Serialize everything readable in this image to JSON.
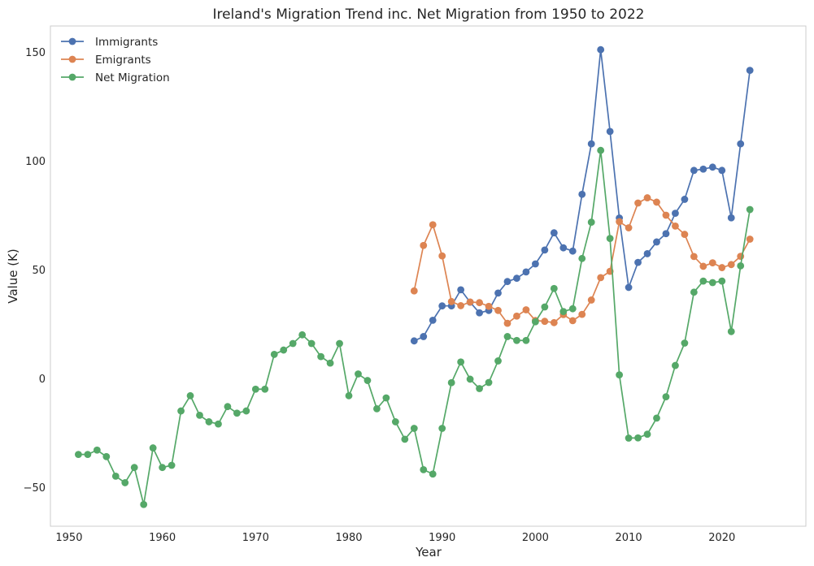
{
  "chart_data": {
    "type": "line",
    "title": "Ireland's Migration Trend inc. Net Migration from 1950 to 2022",
    "xlabel": "Year",
    "ylabel": "Value (K)",
    "xlim": [
      1948,
      2029
    ],
    "ylim": [
      -68,
      162
    ],
    "xticks": [
      1950,
      1960,
      1970,
      1980,
      1990,
      2000,
      2010,
      2020
    ],
    "yticks": [
      -50,
      0,
      50,
      100,
      150
    ],
    "grid": false,
    "legend_position": "top-left",
    "series": [
      {
        "name": "Immigrants",
        "color": "#4c72b0",
        "x": [
          1987,
          1988,
          1989,
          1990,
          1991,
          1992,
          1993,
          1994,
          1995,
          1996,
          1997,
          1998,
          1999,
          2000,
          2001,
          2002,
          2003,
          2004,
          2005,
          2006,
          2007,
          2008,
          2009,
          2010,
          2011,
          2012,
          2013,
          2014,
          2015,
          2016,
          2017,
          2018,
          2019,
          2020,
          2021,
          2022,
          2023
        ],
        "y": [
          17.2,
          19.2,
          26.7,
          33.3,
          33.3,
          40.7,
          35.0,
          30.1,
          31.2,
          39.2,
          44.5,
          46.0,
          48.9,
          52.6,
          59.0,
          66.9,
          60.0,
          58.5,
          84.6,
          107.8,
          151.1,
          113.5,
          73.7,
          41.8,
          53.3,
          57.3,
          62.7,
          66.5,
          75.9,
          82.3,
          95.6,
          96.2,
          97.1,
          95.6,
          73.8,
          107.8,
          141.6
        ]
      },
      {
        "name": "Emigrants",
        "color": "#dd8452",
        "x": [
          1987,
          1988,
          1989,
          1990,
          1991,
          1992,
          1993,
          1994,
          1995,
          1996,
          1997,
          1998,
          1999,
          2000,
          2001,
          2002,
          2003,
          2004,
          2005,
          2006,
          2007,
          2008,
          2009,
          2010,
          2011,
          2012,
          2013,
          2014,
          2015,
          2016,
          2017,
          2018,
          2019,
          2020,
          2021,
          2022,
          2023
        ],
        "y": [
          40.2,
          61.1,
          70.6,
          56.3,
          35.3,
          33.4,
          35.1,
          34.8,
          33.1,
          31.2,
          25.3,
          28.6,
          31.5,
          26.6,
          26.2,
          25.6,
          29.3,
          26.5,
          29.4,
          36.0,
          46.3,
          49.2,
          72.0,
          69.2,
          80.6,
          83.0,
          81.0,
          75.0,
          70.0,
          66.2,
          56.0,
          51.5,
          53.1,
          50.9,
          52.3,
          56.1,
          64.0
        ]
      },
      {
        "name": "Net Migration",
        "color": "#55a868",
        "x": [
          1951,
          1952,
          1953,
          1954,
          1955,
          1956,
          1957,
          1958,
          1959,
          1960,
          1961,
          1962,
          1963,
          1964,
          1965,
          1966,
          1967,
          1968,
          1969,
          1970,
          1971,
          1972,
          1973,
          1974,
          1975,
          1976,
          1977,
          1978,
          1979,
          1980,
          1981,
          1982,
          1983,
          1984,
          1985,
          1986,
          1987,
          1988,
          1989,
          1990,
          1991,
          1992,
          1993,
          1994,
          1995,
          1996,
          1997,
          1998,
          1999,
          2000,
          2001,
          2002,
          2003,
          2004,
          2005,
          2006,
          2007,
          2008,
          2009,
          2010,
          2011,
          2012,
          2013,
          2014,
          2015,
          2016,
          2017,
          2018,
          2019,
          2020,
          2021,
          2022,
          2023
        ],
        "y": [
          -35,
          -35,
          -33,
          -36,
          -45,
          -48,
          -41,
          -58,
          -32,
          -41,
          -40,
          -15,
          -8,
          -17,
          -20,
          -21,
          -13,
          -16,
          -15,
          -5,
          -5,
          11,
          13,
          16,
          20,
          16,
          10,
          7,
          16,
          -8,
          2,
          -1,
          -14,
          -9,
          -20,
          -28,
          -23,
          -42,
          -44,
          -23,
          -2,
          7.5,
          -0.4,
          -4.7,
          -1.9,
          8,
          19.2,
          17.4,
          17.4,
          26,
          32.8,
          41.3,
          30.7,
          32,
          55.1,
          71.8,
          104.8,
          64.3,
          1.6,
          -27.5,
          -27.4,
          -25.7,
          -18.3,
          -8.5,
          5.9,
          16.2,
          39.6,
          44.7,
          44.0,
          44.7,
          21.5,
          51.7,
          77.6
        ]
      }
    ]
  }
}
